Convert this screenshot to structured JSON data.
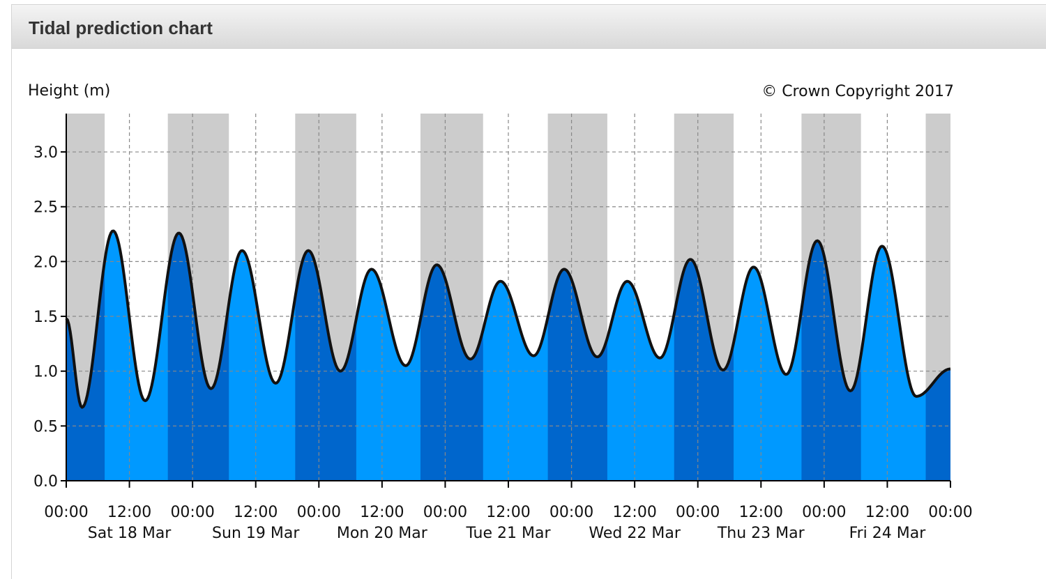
{
  "panel": {
    "title": "Tidal prediction chart"
  },
  "chart_data": {
    "type": "area",
    "ylabel": "Height (m)",
    "copyright": "© Crown Copyright 2017",
    "x_unit": "hours since Sat 18 Mar 00:00",
    "xlim": [
      0,
      168
    ],
    "ylim": [
      0,
      3.35
    ],
    "y_ticks": [
      {
        "v": 0.0,
        "label": "0.0"
      },
      {
        "v": 0.5,
        "label": "0.5"
      },
      {
        "v": 1.0,
        "label": "1.0"
      },
      {
        "v": 1.5,
        "label": "1.5"
      },
      {
        "v": 2.0,
        "label": "2.0"
      },
      {
        "v": 2.5,
        "label": "2.5"
      },
      {
        "v": 3.0,
        "label": "3.0"
      }
    ],
    "x_ticks": [
      {
        "h": 0,
        "label": "00:00"
      },
      {
        "h": 12,
        "label": "12:00"
      },
      {
        "h": 24,
        "label": "00:00"
      },
      {
        "h": 36,
        "label": "12:00"
      },
      {
        "h": 48,
        "label": "00:00"
      },
      {
        "h": 60,
        "label": "12:00"
      },
      {
        "h": 72,
        "label": "00:00"
      },
      {
        "h": 84,
        "label": "12:00"
      },
      {
        "h": 96,
        "label": "00:00"
      },
      {
        "h": 108,
        "label": "12:00"
      },
      {
        "h": 120,
        "label": "00:00"
      },
      {
        "h": 132,
        "label": "12:00"
      },
      {
        "h": 144,
        "label": "00:00"
      },
      {
        "h": 156,
        "label": "12:00"
      },
      {
        "h": 168,
        "label": "00:00"
      }
    ],
    "day_labels": [
      {
        "h": 12,
        "label": "Sat 18 Mar"
      },
      {
        "h": 36,
        "label": "Sun 19 Mar"
      },
      {
        "h": 60,
        "label": "Mon 20 Mar"
      },
      {
        "h": 84,
        "label": "Tue 21 Mar"
      },
      {
        "h": 108,
        "label": "Wed 22 Mar"
      },
      {
        "h": 132,
        "label": "Thu 23 Mar"
      },
      {
        "h": 156,
        "label": "Fri 24 Mar"
      }
    ],
    "night_periods": [
      [
        0,
        7.3
      ],
      [
        19.3,
        30.9
      ],
      [
        43.5,
        55.1
      ],
      [
        67.3,
        79.2
      ],
      [
        91.5,
        102.8
      ],
      [
        115.5,
        126.8
      ],
      [
        139.7,
        151.0
      ],
      [
        163.3,
        168
      ]
    ],
    "tide_points": [
      {
        "h": 0,
        "height": 1.48
      },
      {
        "h": 3.0,
        "height": 0.67
      },
      {
        "h": 8.9,
        "height": 2.28
      },
      {
        "h": 15.0,
        "height": 0.73
      },
      {
        "h": 21.4,
        "height": 2.26
      },
      {
        "h": 27.5,
        "height": 0.84
      },
      {
        "h": 33.4,
        "height": 2.1
      },
      {
        "h": 39.8,
        "height": 0.89
      },
      {
        "h": 46.0,
        "height": 2.1
      },
      {
        "h": 52.1,
        "height": 1.0
      },
      {
        "h": 58.0,
        "height": 1.93
      },
      {
        "h": 64.5,
        "height": 1.05
      },
      {
        "h": 70.4,
        "height": 1.97
      },
      {
        "h": 76.8,
        "height": 1.11
      },
      {
        "h": 82.5,
        "height": 1.82
      },
      {
        "h": 88.8,
        "height": 1.14
      },
      {
        "h": 94.6,
        "height": 1.93
      },
      {
        "h": 100.9,
        "height": 1.13
      },
      {
        "h": 106.6,
        "height": 1.82
      },
      {
        "h": 112.8,
        "height": 1.12
      },
      {
        "h": 118.6,
        "height": 2.02
      },
      {
        "h": 124.8,
        "height": 1.01
      },
      {
        "h": 130.6,
        "height": 1.95
      },
      {
        "h": 136.8,
        "height": 0.97
      },
      {
        "h": 142.7,
        "height": 2.19
      },
      {
        "h": 149.0,
        "height": 0.82
      },
      {
        "h": 155.0,
        "height": 2.14
      },
      {
        "h": 161.5,
        "height": 0.77
      },
      {
        "h": 168,
        "height": 1.02
      }
    ],
    "colors": {
      "night_background": "#cccccc",
      "day_background": "#ffffff",
      "water_night": "#0066cc",
      "water_day": "#0099ff",
      "curve": "#111111",
      "grid": "#888888"
    },
    "grid": true
  }
}
